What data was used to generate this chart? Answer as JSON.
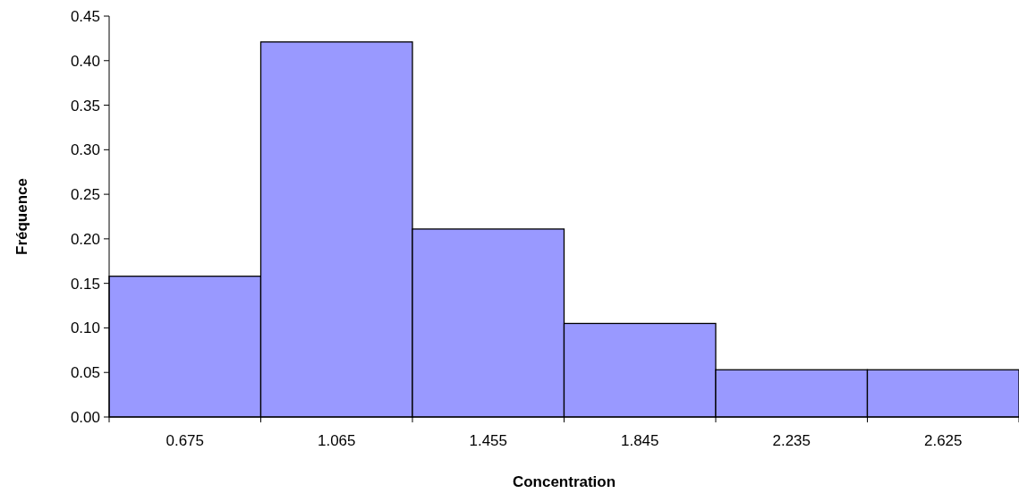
{
  "chart_data": {
    "type": "bar",
    "xlabel": "Concentration",
    "ylabel": "Fréquence",
    "categories": [
      "0.675",
      "1.065",
      "1.455",
      "1.845",
      "2.235",
      "2.625"
    ],
    "values": [
      0.158,
      0.421,
      0.211,
      0.105,
      0.053,
      0.053
    ],
    "color": "#9999ff",
    "ylim": [
      0,
      0.45
    ],
    "yticks": [
      {
        "value": 0,
        "label": "0.00"
      },
      {
        "value": 0.05,
        "label": "0.05"
      },
      {
        "value": 0.1,
        "label": "0.10"
      },
      {
        "value": 0.15,
        "label": "0.15"
      },
      {
        "value": 0.2,
        "label": "0.20"
      },
      {
        "value": 0.25,
        "label": "0.25"
      },
      {
        "value": 0.3,
        "label": "0.30"
      },
      {
        "value": 0.35,
        "label": "0.35"
      },
      {
        "value": 0.4,
        "label": "0.40"
      },
      {
        "value": 0.45,
        "label": "0.45"
      }
    ],
    "grid": false
  }
}
